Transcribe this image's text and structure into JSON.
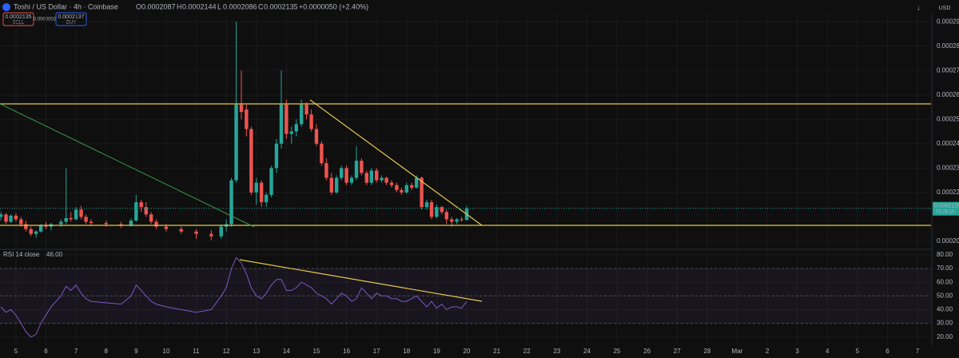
{
  "header": {
    "symbol": "Toshi / US Dollar · 4h · Coinbase",
    "ohlc": [
      {
        "key": "O",
        "value": "0.0002087"
      },
      {
        "key": "H",
        "value": "0.0002144"
      },
      {
        "key": "L",
        "value": "0.0002086"
      },
      {
        "key": "C",
        "value": "0.0002135"
      }
    ],
    "change": "+0.0000050 (+2.40%)",
    "sell": {
      "price": "0.0002135",
      "label": "SELL"
    },
    "spread": "0.0000002",
    "buy": {
      "price": "0.0002137",
      "label": "BUY"
    },
    "currency": "USD"
  },
  "chart_data": [
    {
      "type": "candlestick",
      "up_color": "#26a69a",
      "down_color": "#ef5350",
      "grid": true,
      "x": [
        4.5,
        4.67,
        4.83,
        5.0,
        5.17,
        5.33,
        5.5,
        5.67,
        5.83,
        6.0,
        6.17,
        6.5,
        6.67,
        6.83,
        7.0,
        7.17,
        7.33,
        7.5,
        8.0,
        8.5,
        8.83,
        9.0,
        9.17,
        9.33,
        9.5,
        9.67,
        10.0,
        10.5,
        11.0,
        11.5,
        11.83,
        12.0,
        12.17,
        12.33,
        12.5,
        12.67,
        12.83,
        13.0,
        13.17,
        13.33,
        13.5,
        13.67,
        13.83,
        14.0,
        14.17,
        14.33,
        14.5,
        14.67,
        14.83,
        15.0,
        15.17,
        15.33,
        15.5,
        15.67,
        15.83,
        16.0,
        16.17,
        16.33,
        16.5,
        16.67,
        16.83,
        17.0,
        17.17,
        17.33,
        17.5,
        17.67,
        17.83,
        18.0,
        18.17,
        18.33,
        18.5,
        18.67,
        18.83,
        19.0,
        19.17,
        19.33,
        19.5,
        19.67,
        19.83,
        20.0
      ],
      "open": [
        0.00021,
        0.000211,
        0.000208,
        0.0002105,
        0.000209,
        0.000207,
        0.000205,
        0.000203,
        0.000204,
        0.0002065,
        0.000206,
        0.000207,
        0.000208,
        0.0002095,
        0.000209,
        0.000213,
        0.00021,
        0.000208,
        0.0002075,
        0.000207,
        0.0002065,
        0.0002085,
        0.000216,
        0.000214,
        0.000211,
        0.000208,
        0.000206,
        0.000205,
        0.000204,
        0.000203,
        0.000202,
        0.000206,
        0.000207,
        0.000225,
        0.000256,
        0.000254,
        0.000246,
        0.00022,
        0.000224,
        0.000216,
        0.000219,
        0.00023,
        0.00024,
        0.000256,
        0.000244,
        0.000245,
        0.000248,
        0.000256,
        0.000252,
        0.000246,
        0.00024,
        0.000232,
        0.000226,
        0.00022,
        0.000226,
        0.00023,
        0.000224,
        0.000226,
        0.000233,
        0.000228,
        0.000224,
        0.000229,
        0.000225,
        0.000226,
        0.000224,
        0.000223,
        0.000221,
        0.00022,
        0.000223,
        0.000222,
        0.000226,
        0.000214,
        0.000216,
        0.00021,
        0.000214,
        0.000212,
        0.000209,
        0.000208,
        0.000209,
        0.0002087
      ],
      "high": [
        0.000212,
        0.0002115,
        0.000211,
        0.0002115,
        0.00021,
        0.0002085,
        0.000206,
        0.0002045,
        0.000207,
        0.000208,
        0.0002075,
        0.000209,
        0.00023,
        0.000212,
        0.000214,
        0.0002145,
        0.000211,
        0.000209,
        0.0002085,
        0.000208,
        0.0002095,
        0.000219,
        0.000217,
        0.000216,
        0.000212,
        0.000209,
        0.000207,
        0.000206,
        0.000205,
        0.0002045,
        0.000207,
        0.000209,
        0.000226,
        0.00029,
        0.00027,
        0.000256,
        0.000247,
        0.000226,
        0.000225,
        0.00022,
        0.000231,
        0.000242,
        0.00027,
        0.000258,
        0.000247,
        0.00025,
        0.000258,
        0.000257,
        0.000254,
        0.000248,
        0.000241,
        0.000234,
        0.000228,
        0.000227,
        0.000231,
        0.000231,
        0.000227,
        0.000239,
        0.000234,
        0.000229,
        0.00023,
        0.00023,
        0.000227,
        0.0002265,
        0.000225,
        0.000224,
        0.000222,
        0.000224,
        0.000224,
        0.000227,
        0.0002265,
        0.000217,
        0.000217,
        0.000215,
        0.0002145,
        0.000213,
        0.00021,
        0.0002095,
        0.00021,
        0.0002144
      ],
      "low": [
        0.0002085,
        0.000207,
        0.0002075,
        0.000208,
        0.000206,
        0.000204,
        0.000202,
        0.0002015,
        0.0002035,
        0.000205,
        0.0002045,
        0.000206,
        0.000207,
        0.000208,
        0.0002085,
        0.000209,
        0.000207,
        0.0002065,
        0.000206,
        0.0002055,
        0.000206,
        0.000208,
        0.000212,
        0.00021,
        0.000207,
        0.000205,
        0.000204,
        0.000203,
        0.000201,
        0.0002005,
        0.000201,
        0.000204,
        0.000206,
        0.000224,
        0.00025,
        0.000243,
        0.000219,
        0.000215,
        0.000214,
        0.000214,
        0.000218,
        0.000228,
        0.000238,
        0.000242,
        0.00024,
        0.000243,
        0.000247,
        0.00025,
        0.000245,
        0.000239,
        0.000231,
        0.000225,
        0.000219,
        0.0002195,
        0.000225,
        0.000223,
        0.000223,
        0.000225,
        0.000227,
        0.000223,
        0.000223,
        0.000224,
        0.000224,
        0.000223,
        0.000222,
        0.00022,
        0.000219,
        0.0002195,
        0.000221,
        0.0002215,
        0.000213,
        0.000213,
        0.000209,
        0.0002095,
        0.000211,
        0.000207,
        0.000206,
        0.000207,
        0.000208,
        0.0002086
      ],
      "close": [
        0.000211,
        0.000208,
        0.0002105,
        0.000209,
        0.000207,
        0.000205,
        0.000203,
        0.000204,
        0.0002065,
        0.000206,
        0.000207,
        0.000208,
        0.0002095,
        0.000209,
        0.000213,
        0.00021,
        0.000208,
        0.0002075,
        0.000207,
        0.0002065,
        0.0002085,
        0.000216,
        0.000214,
        0.000211,
        0.000208,
        0.000206,
        0.000205,
        0.000204,
        0.000203,
        0.000202,
        0.000206,
        0.000207,
        0.000225,
        0.000256,
        0.000253,
        0.000246,
        0.00022,
        0.000224,
        0.000216,
        0.000219,
        0.00023,
        0.00024,
        0.000256,
        0.000244,
        0.000245,
        0.000248,
        0.000256,
        0.000252,
        0.000246,
        0.00024,
        0.000232,
        0.000226,
        0.00022,
        0.000226,
        0.00023,
        0.000224,
        0.000226,
        0.000233,
        0.000228,
        0.000224,
        0.000229,
        0.000225,
        0.000226,
        0.000224,
        0.000223,
        0.000221,
        0.00022,
        0.000223,
        0.000222,
        0.000226,
        0.000214,
        0.000216,
        0.00021,
        0.000214,
        0.000212,
        0.000209,
        0.000208,
        0.000209,
        0.0002087,
        0.0002135
      ],
      "last_price": {
        "value": 0.0002135,
        "label": "0.0002135"
      },
      "countdown": "02:26:10",
      "xlim": [
        4.47,
        35.45
      ],
      "xticks": [
        5,
        6,
        7,
        8,
        9,
        10,
        11,
        12,
        13,
        14,
        15,
        16,
        17,
        18,
        19,
        20,
        21,
        22,
        23,
        24,
        25,
        26,
        27,
        28,
        {
          "value": 29,
          "label": "Mar"
        },
        {
          "value": 30,
          "label": "2"
        },
        {
          "value": 31,
          "label": "3"
        },
        {
          "value": 32,
          "label": "4"
        },
        {
          "value": 33,
          "label": "5"
        },
        {
          "value": 34,
          "label": "6"
        },
        {
          "value": 35,
          "label": "7"
        }
      ],
      "ylim": [
        0.0001967,
        0.000293
      ],
      "yticks": [
        {
          "value": 0.0002,
          "label": "0.0002000"
        },
        {
          "value": 0.00022,
          "label": "0.0002200"
        },
        {
          "value": 0.00023,
          "label": "0.0002300"
        },
        {
          "value": 0.00024,
          "label": "0.0002400"
        },
        {
          "value": 0.00025,
          "label": "0.0002500"
        },
        {
          "value": 0.00026,
          "label": "0.0002600"
        },
        {
          "value": 0.00027,
          "label": "0.0002700"
        },
        {
          "value": 0.00028,
          "label": "0.0002800"
        },
        {
          "value": 0.00029,
          "label": "0.0002900"
        }
      ]
    },
    {
      "type": "line",
      "title": "RSI 14 close",
      "color": "#7e57c2",
      "grid": true,
      "last_value": {
        "value": 46,
        "label": "46.00"
      },
      "x": [
        4.5,
        4.67,
        4.83,
        5.0,
        5.17,
        5.33,
        5.5,
        5.67,
        5.83,
        6.0,
        6.17,
        6.5,
        6.67,
        6.83,
        7.0,
        7.17,
        7.33,
        7.5,
        8.0,
        8.5,
        8.83,
        9.0,
        9.17,
        9.33,
        9.5,
        9.67,
        10.0,
        10.5,
        11.0,
        11.5,
        11.83,
        12.0,
        12.17,
        12.33,
        12.5,
        12.67,
        12.83,
        13.0,
        13.17,
        13.33,
        13.5,
        13.67,
        13.83,
        14.0,
        14.17,
        14.33,
        14.5,
        14.67,
        14.83,
        15.0,
        15.17,
        15.33,
        15.5,
        15.67,
        15.83,
        16.0,
        16.17,
        16.33,
        16.5,
        16.67,
        16.83,
        17.0,
        17.17,
        17.33,
        17.5,
        17.67,
        17.83,
        18.0,
        18.17,
        18.33,
        18.5,
        18.67,
        18.83,
        19.0,
        19.17,
        19.33,
        19.5,
        19.67,
        19.83,
        20.0
      ],
      "values": [
        42,
        38,
        40,
        36,
        30,
        24,
        20,
        22,
        30,
        36,
        42,
        50,
        57,
        54,
        58,
        52,
        48,
        46,
        45,
        44,
        50,
        58,
        54,
        50,
        46,
        44,
        42,
        40,
        38,
        40,
        50,
        56,
        70,
        78,
        74,
        66,
        56,
        50,
        48,
        52,
        58,
        62,
        62,
        54,
        54,
        56,
        60,
        58,
        56,
        52,
        50,
        48,
        44,
        48,
        52,
        50,
        46,
        48,
        56,
        52,
        48,
        52,
        50,
        50,
        48,
        48,
        46,
        46,
        48,
        50,
        46,
        42,
        46,
        41,
        44,
        40,
        42,
        42,
        41,
        46
      ],
      "xlim": [
        4.47,
        35.45
      ],
      "ylim": [
        14,
        84
      ],
      "yticks": [
        {
          "value": 80,
          "label": "80.00"
        },
        {
          "value": 70,
          "label": "70.00"
        },
        {
          "value": 60,
          "label": "60.00"
        },
        {
          "value": 50,
          "label": "50.00"
        },
        {
          "value": 40,
          "label": "40.00"
        },
        {
          "value": 30,
          "label": "30.00"
        },
        {
          "value": 20,
          "label": "20.00"
        }
      ]
    }
  ]
}
